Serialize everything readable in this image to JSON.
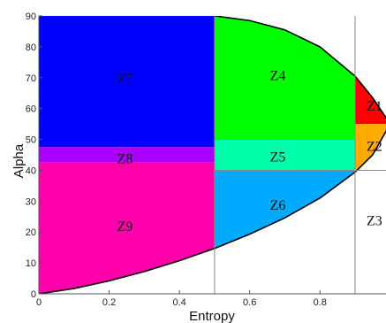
{
  "chart_data": {
    "type": "area",
    "title": "",
    "xlabel": "Entropy",
    "ylabel": "Alpha",
    "xlim": [
      0,
      1
    ],
    "ylim": [
      0,
      90
    ],
    "x_ticks": [
      {
        "value": 0,
        "label": "0"
      },
      {
        "value": 0.2,
        "label": "0.2"
      },
      {
        "value": 0.4,
        "label": "0.4"
      },
      {
        "value": 0.6,
        "label": "0.6"
      },
      {
        "value": 0.8,
        "label": "0.8"
      }
    ],
    "y_ticks": [
      {
        "value": 0,
        "label": "0"
      },
      {
        "value": 10,
        "label": "10"
      },
      {
        "value": 20,
        "label": "20"
      },
      {
        "value": 30,
        "label": "30"
      },
      {
        "value": 40,
        "label": "40"
      },
      {
        "value": 50,
        "label": "50"
      },
      {
        "value": 60,
        "label": "60"
      },
      {
        "value": 70,
        "label": "70"
      },
      {
        "value": 80,
        "label": "80"
      },
      {
        "value": 90,
        "label": "90"
      }
    ],
    "boundaries": {
      "entropy_splits": [
        0.5,
        0.9
      ],
      "alpha_splits_low_entropy": [
        42.5,
        47.5
      ],
      "alpha_splits_mid_entropy": [
        40,
        50
      ],
      "alpha_splits_high_entropy": [
        40,
        55
      ]
    },
    "feasible_curve": {
      "description_values": "lower boundary curve points (entropy, alpha)",
      "lower": [
        [
          0,
          0
        ],
        [
          0.1,
          1.7
        ],
        [
          0.2,
          4.2
        ],
        [
          0.3,
          7.2
        ],
        [
          0.4,
          10.7
        ],
        [
          0.5,
          14.7
        ],
        [
          0.6,
          19.3
        ],
        [
          0.7,
          24.6
        ],
        [
          0.8,
          31.0
        ],
        [
          0.9,
          39.4
        ],
        [
          0.95,
          45.0
        ],
        [
          1.0,
          55.0
        ]
      ],
      "upper": [
        [
          0.5,
          90
        ],
        [
          0.6,
          88.5
        ],
        [
          0.7,
          85.5
        ],
        [
          0.8,
          80.0
        ],
        [
          0.9,
          70.5
        ],
        [
          0.95,
          63.5
        ],
        [
          1.0,
          55.0
        ]
      ]
    },
    "zones": [
      {
        "label": "Z1",
        "color": "#ff0000",
        "h": [
          0.9,
          1.0
        ],
        "alpha": [
          55,
          90
        ],
        "label_at": [
          0.955,
          61
        ]
      },
      {
        "label": "Z2",
        "color": "#ffaa00",
        "h": [
          0.9,
          1.0
        ],
        "alpha": [
          40,
          55
        ],
        "label_at": [
          0.955,
          48
        ]
      },
      {
        "label": "Z3",
        "color": "#ffffff",
        "h": [
          0.9,
          1.0
        ],
        "alpha": [
          0,
          40
        ],
        "label_at": [
          0.955,
          24
        ]
      },
      {
        "label": "Z4",
        "color": "#00ff00",
        "h": [
          0.5,
          0.9
        ],
        "alpha": [
          50,
          90
        ],
        "label_at": [
          0.68,
          71
        ]
      },
      {
        "label": "Z5",
        "color": "#00ffaa",
        "h": [
          0.5,
          0.9
        ],
        "alpha": [
          40,
          50
        ],
        "label_at": [
          0.68,
          44.5
        ]
      },
      {
        "label": "Z6",
        "color": "#00aaff",
        "h": [
          0.5,
          0.9
        ],
        "alpha": [
          0,
          40
        ],
        "label_at": [
          0.68,
          29
        ]
      },
      {
        "label": "Z7",
        "color": "#0000ff",
        "h": [
          0.0,
          0.5
        ],
        "alpha": [
          47.5,
          90
        ],
        "label_at": [
          0.245,
          70
        ]
      },
      {
        "label": "Z8",
        "color": "#aa00ff",
        "h": [
          0.0,
          0.5
        ],
        "alpha": [
          42.5,
          47.5
        ],
        "label_at": [
          0.245,
          44
        ]
      },
      {
        "label": "Z9",
        "color": "#ff00aa",
        "h": [
          0.0,
          0.5
        ],
        "alpha": [
          0,
          42.5
        ],
        "label_at": [
          0.245,
          22
        ]
      }
    ]
  }
}
